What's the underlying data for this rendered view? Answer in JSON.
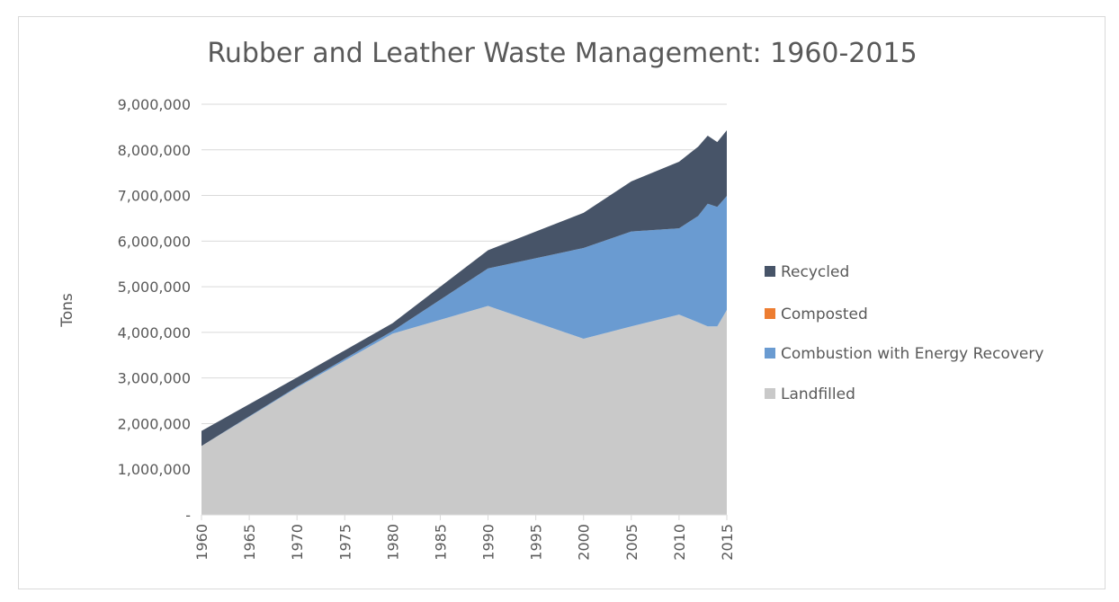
{
  "chart_data": {
    "type": "area",
    "stacked": true,
    "title": "Rubber and Leather Waste Management: 1960-2015",
    "xlabel": "",
    "ylabel": "Tons",
    "ylim": [
      0,
      9000000
    ],
    "yticks": [
      0,
      1000000,
      2000000,
      3000000,
      4000000,
      5000000,
      6000000,
      7000000,
      8000000,
      9000000
    ],
    "ytick_labels": [
      "-",
      "1,000,000",
      "2,000,000",
      "3,000,000",
      "4,000,000",
      "5,000,000",
      "6,000,000",
      "7,000,000",
      "8,000,000",
      "9,000,000"
    ],
    "xtick_labels": [
      "1960",
      "1965",
      "1970",
      "1975",
      "1980",
      "1985",
      "1990",
      "1995",
      "2000",
      "2005",
      "2010",
      "2015"
    ],
    "x": [
      1960,
      1970,
      1980,
      1990,
      2000,
      2005,
      2010,
      2012,
      2013,
      2014,
      2015
    ],
    "grid": true,
    "legend_position": "right",
    "series": [
      {
        "name": "Landfilled",
        "color": "#c9c9c9",
        "values": [
          1510000,
          2790000,
          3970000,
          4580000,
          3860000,
          4130000,
          4390000,
          4220000,
          4130000,
          4130000,
          4490000
        ]
      },
      {
        "name": "Combustion with Energy Recovery",
        "color": "#6a9bd1",
        "values": [
          0,
          20000,
          60000,
          820000,
          1990000,
          2080000,
          1890000,
          2330000,
          2690000,
          2620000,
          2500000
        ]
      },
      {
        "name": "Composted",
        "color": "#ed7d31",
        "values": [
          0,
          0,
          0,
          0,
          0,
          0,
          0,
          0,
          0,
          0,
          0
        ]
      },
      {
        "name": "Recycled",
        "color": "#475468",
        "values": [
          330000,
          200000,
          170000,
          400000,
          770000,
          1100000,
          1460000,
          1520000,
          1490000,
          1420000,
          1440000
        ]
      }
    ]
  }
}
